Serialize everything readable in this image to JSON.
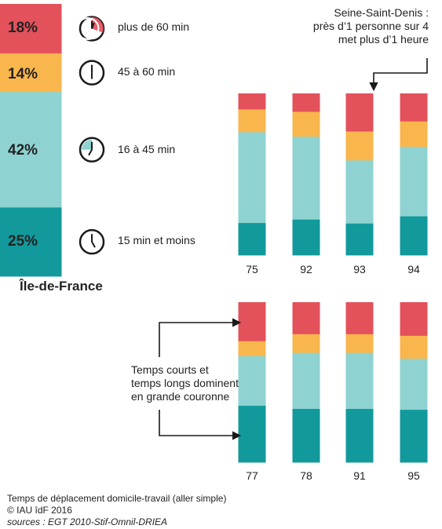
{
  "colors": {
    "over_60": "#e3515b",
    "45_60": "#f9b64d",
    "16_45": "#8ed3d1",
    "15_less": "#12999c",
    "ink": "#222222"
  },
  "legend": {
    "items": [
      {
        "key": "over_60",
        "label": "plus de 60 min",
        "pct": "18%"
      },
      {
        "key": "45_60",
        "label": "45 à 60 min",
        "pct": "14%"
      },
      {
        "key": "16_45",
        "label": "16 à 45 min",
        "pct": "42%"
      },
      {
        "key": "15_less",
        "label": "15 min et moins",
        "pct": "25%"
      }
    ]
  },
  "idf_label": "Île-de-France",
  "annotations": {
    "ssd": [
      "Seine-Saint-Denis :",
      "près d’1 personne sur 4",
      "met plus d’1 heure"
    ],
    "grande_couronne": [
      "Temps courts et",
      "temps longs dominent",
      "en grande couronne"
    ]
  },
  "footer": {
    "title": "Temps de déplacement domicile-travail (aller simple)",
    "copyright": "© IAU îdF 2016",
    "sources": "sources : EGT 2010-Stif-Omnil-DRIEA"
  },
  "chart_data": [
    {
      "type": "bar",
      "stacked": true,
      "categories": [
        "Île-de-France"
      ],
      "series": [
        {
          "name": "plus de 60 min",
          "values": [
            18
          ]
        },
        {
          "name": "45 à 60 min",
          "values": [
            14
          ]
        },
        {
          "name": "16 à 45 min",
          "values": [
            42
          ]
        },
        {
          "name": "15 min et moins",
          "values": [
            25
          ]
        }
      ]
    },
    {
      "type": "bar",
      "stacked": true,
      "categories": [
        "75",
        "92",
        "93",
        "94"
      ],
      "series": [
        {
          "name": "plus de 60 min",
          "values": [
            12,
            14,
            29,
            21
          ]
        },
        {
          "name": "45 à 60 min",
          "values": [
            17,
            19,
            22,
            19
          ]
        },
        {
          "name": "16 à 45 min",
          "values": [
            68,
            63,
            48,
            52
          ]
        },
        {
          "name": "15 min et moins",
          "values": [
            24,
            27,
            24,
            29
          ]
        }
      ]
    },
    {
      "type": "bar",
      "stacked": true,
      "categories": [
        "77",
        "78",
        "91",
        "95"
      ],
      "series": [
        {
          "name": "plus de 60 min",
          "values": [
            29,
            24,
            24,
            25
          ]
        },
        {
          "name": "45 à 60 min",
          "values": [
            11,
            14,
            14,
            17
          ]
        },
        {
          "name": "16 à 45 min",
          "values": [
            37,
            42,
            42,
            38
          ]
        },
        {
          "name": "15 min et moins",
          "values": [
            42,
            40,
            40,
            39
          ]
        }
      ]
    }
  ]
}
